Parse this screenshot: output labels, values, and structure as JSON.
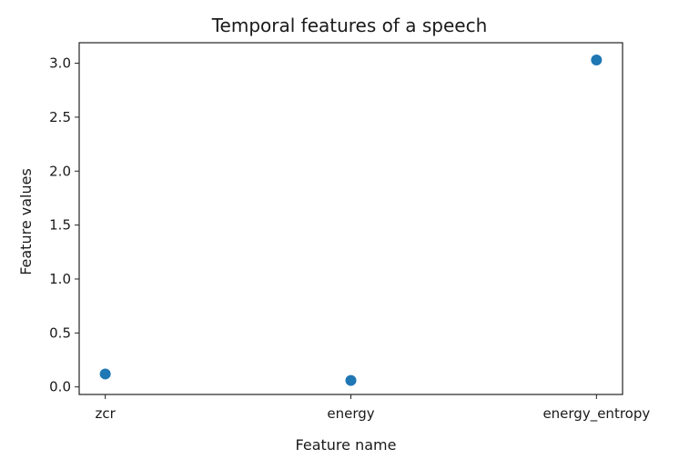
{
  "chart_data": {
    "type": "scatter",
    "title": "Temporal features of a speech",
    "xlabel": "Feature name",
    "ylabel": "Feature values",
    "categories": [
      "zcr",
      "energy",
      "energy_entropy"
    ],
    "values": [
      0.12,
      0.06,
      3.03
    ],
    "ylim": [
      -0.07,
      3.19
    ],
    "yticks": [
      0.0,
      0.5,
      1.0,
      1.5,
      2.0,
      2.5,
      3.0
    ],
    "ytick_labels": [
      "0.0",
      "0.5",
      "1.0",
      "1.5",
      "2.0",
      "2.5",
      "3.0"
    ],
    "grid": false,
    "series_color": "#1f77b4"
  }
}
